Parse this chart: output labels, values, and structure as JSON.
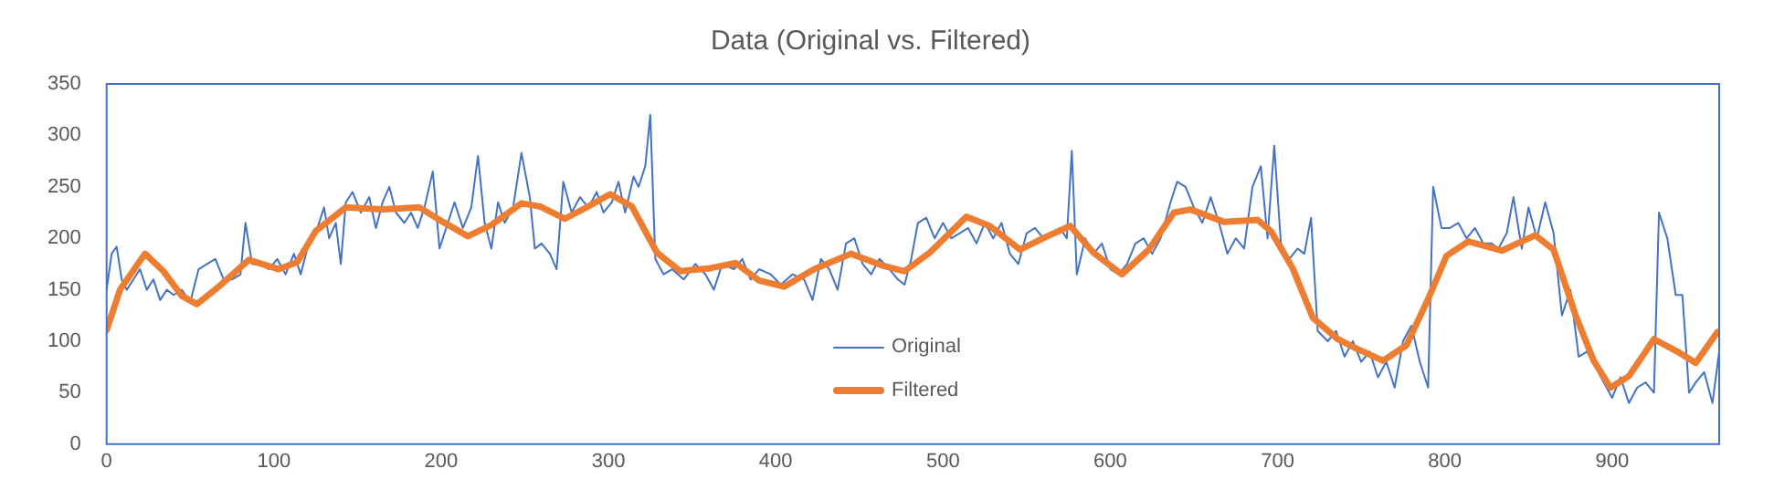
{
  "chart_data": {
    "type": "line",
    "title": "Data (Original vs. Filtered)",
    "xlim": [
      0,
      964
    ],
    "xticks": [
      0,
      100,
      200,
      300,
      400,
      500,
      600,
      700,
      800,
      900
    ],
    "ylim": [
      0,
      350
    ],
    "yticks": [
      0,
      50,
      100,
      150,
      200,
      250,
      300,
      350
    ],
    "grid": false,
    "legend": "bottom",
    "marker": "none",
    "series": [
      {
        "name": "Original",
        "color": "#4472c4",
        "x": [
          0,
          3,
          6,
          9,
          12,
          16,
          20,
          24,
          28,
          32,
          36,
          40,
          45,
          50,
          55,
          60,
          65,
          70,
          75,
          80,
          83,
          87,
          92,
          97,
          102,
          107,
          112,
          116,
          120,
          126,
          130,
          133,
          137,
          140,
          143,
          147,
          152,
          157,
          161,
          165,
          169,
          173,
          178,
          182,
          186,
          190,
          195,
          199,
          204,
          208,
          213,
          218,
          222,
          226,
          230,
          234,
          238,
          243,
          248,
          253,
          256,
          260,
          265,
          269,
          273,
          278,
          283,
          288,
          293,
          297,
          302,
          306,
          310,
          315,
          318,
          322,
          325,
          328,
          333,
          338,
          345,
          352,
          358,
          363,
          368,
          375,
          380,
          385,
          390,
          397,
          403,
          410,
          417,
          422,
          427,
          432,
          437,
          442,
          447,
          452,
          457,
          462,
          468,
          473,
          477,
          481,
          485,
          490,
          495,
          500,
          505,
          510,
          515,
          520,
          525,
          530,
          535,
          540,
          545,
          550,
          555,
          560,
          565,
          570,
          574,
          577,
          580,
          585,
          590,
          595,
          600,
          605,
          610,
          615,
          620,
          625,
          630,
          636,
          640,
          645,
          650,
          655,
          660,
          665,
          670,
          675,
          680,
          685,
          690,
          694,
          698,
          702,
          707,
          712,
          716,
          720,
          724,
          730,
          735,
          740,
          745,
          750,
          755,
          760,
          765,
          770,
          775,
          780,
          785,
          790,
          793,
          798,
          803,
          808,
          813,
          818,
          823,
          828,
          832,
          837,
          841,
          846,
          850,
          855,
          860,
          865,
          870,
          875,
          880,
          885,
          890,
          895,
          900,
          905,
          910,
          915,
          920,
          925,
          928,
          933,
          938,
          942,
          946,
          950,
          955,
          960,
          964
        ],
        "values": [
          150,
          185,
          192,
          160,
          150,
          160,
          170,
          150,
          160,
          140,
          150,
          145,
          150,
          138,
          170,
          175,
          180,
          160,
          160,
          165,
          215,
          175,
          175,
          170,
          180,
          165,
          185,
          165,
          190,
          210,
          230,
          200,
          215,
          175,
          235,
          245,
          225,
          240,
          210,
          235,
          250,
          225,
          215,
          225,
          210,
          230,
          265,
          190,
          215,
          235,
          210,
          230,
          280,
          215,
          190,
          235,
          215,
          230,
          283,
          240,
          190,
          195,
          185,
          170,
          255,
          225,
          240,
          230,
          245,
          225,
          235,
          255,
          225,
          260,
          250,
          270,
          320,
          180,
          165,
          170,
          160,
          175,
          165,
          150,
          175,
          170,
          180,
          160,
          170,
          165,
          155,
          165,
          160,
          140,
          180,
          170,
          150,
          195,
          200,
          175,
          165,
          180,
          170,
          160,
          155,
          180,
          215,
          220,
          200,
          215,
          200,
          205,
          210,
          195,
          215,
          200,
          215,
          185,
          175,
          205,
          210,
          200,
          205,
          210,
          200,
          285,
          165,
          200,
          185,
          195,
          170,
          165,
          175,
          195,
          200,
          185,
          200,
          235,
          255,
          250,
          230,
          215,
          240,
          215,
          185,
          200,
          190,
          250,
          270,
          200,
          290,
          195,
          180,
          190,
          185,
          220,
          110,
          100,
          110,
          85,
          100,
          80,
          90,
          65,
          80,
          55,
          100,
          115,
          80,
          55,
          250,
          210,
          210,
          215,
          200,
          210,
          195,
          195,
          190,
          205,
          240,
          190,
          230,
          200,
          235,
          205,
          125,
          150,
          85,
          90,
          75,
          60,
          45,
          65,
          40,
          55,
          60,
          50,
          225,
          200,
          145,
          145,
          50,
          60,
          70,
          40,
          90
        ]
      },
      {
        "name": "Filtered",
        "color": "#ed7d31",
        "x": [
          0,
          8,
          23,
          34,
          45,
          54,
          67,
          85,
          103,
          114,
          125,
          143,
          165,
          187,
          201,
          216,
          230,
          248,
          259,
          274,
          288,
          301,
          314,
          329,
          343,
          361,
          376,
          390,
          405,
          423,
          445,
          463,
          477,
          492,
          514,
          528,
          546,
          561,
          576,
          590,
          607,
          623,
          638,
          648,
          668,
          688,
          696,
          709,
          721,
          736,
          747,
          763,
          777,
          790,
          801,
          814,
          834,
          854,
          865,
          878,
          889,
          899,
          910,
          925,
          939,
          950,
          963
        ],
        "values": [
          111,
          150,
          185,
          168,
          144,
          136,
          153,
          179,
          170,
          177,
          207,
          230,
          228,
          230,
          216,
          202,
          213,
          234,
          231,
          219,
          231,
          243,
          231,
          186,
          168,
          171,
          176,
          159,
          153,
          170,
          185,
          174,
          168,
          186,
          221,
          212,
          189,
          201,
          212,
          186,
          165,
          189,
          225,
          228,
          216,
          218,
          207,
          171,
          123,
          102,
          93,
          81,
          96,
          141,
          183,
          197,
          188,
          203,
          189,
          126,
          81,
          55,
          66,
          102,
          90,
          79,
          109
        ]
      }
    ]
  }
}
